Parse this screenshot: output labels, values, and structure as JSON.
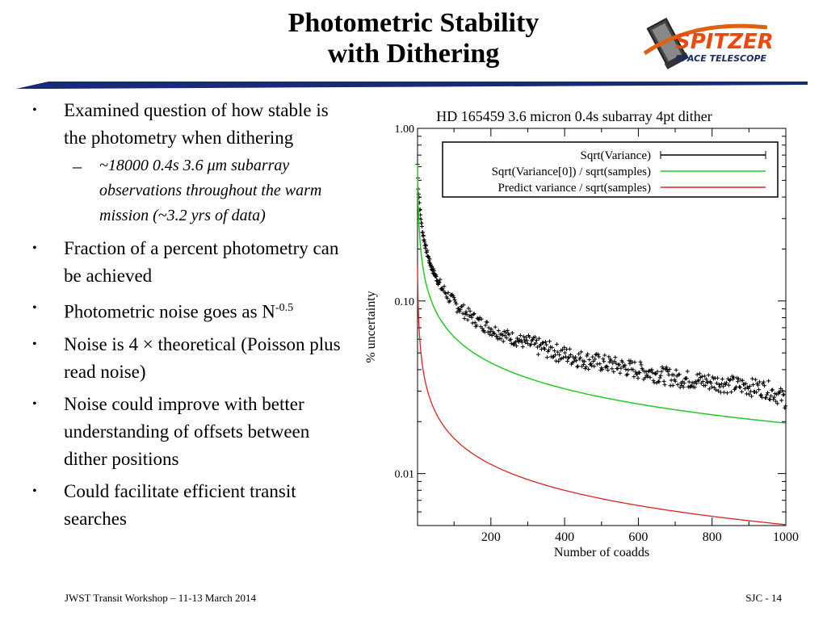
{
  "slide": {
    "title_line1": "Photometric Stability",
    "title_line2": "with Dithering",
    "logo_text_main": "SPITZER",
    "logo_text_sub": "SPACE TELESCOPE",
    "bullets": [
      {
        "text": "Examined question of how stable is the photometry when dithering"
      },
      {
        "text": "Fraction of a percent photometry can be achieved"
      },
      {
        "text_before": "Photometric noise goes as N",
        "superscript": "-0.5"
      },
      {
        "text": "Noise is 4 ×  theoretical (Poisson plus read noise)"
      },
      {
        "text": "Noise could improve with better understanding of offsets between dither positions"
      },
      {
        "text": "Could facilitate efficient transit searches"
      }
    ],
    "sub_bullet": "~18000 0.4s 3.6 μm subarray observations throughout the warm mission (~3.2 yrs of data)",
    "bullet_symbol": "•",
    "dash_symbol": "–",
    "footer_left": "JWST Transit Workshop – 11-13 March 2014",
    "footer_right": "SJC - 14"
  },
  "chart_data": {
    "type": "line",
    "title": "HD 165459 3.6 micron 0.4s subarray 4pt dither",
    "xlabel": "Number of coadds",
    "ylabel": "% uncertainty",
    "xlim": [
      1,
      1000
    ],
    "ylim": [
      0.005,
      1.0
    ],
    "yscale": "log",
    "xticks": [
      200,
      400,
      600,
      800,
      1000
    ],
    "xtick_labels": [
      "200",
      "400",
      "600",
      "800",
      "1000"
    ],
    "yticks": [
      0.01,
      0.1,
      1.0
    ],
    "ytick_labels": [
      "0.01",
      "0.10",
      "1.00"
    ],
    "legend_position": "top-right",
    "series": [
      {
        "name": "Sqrt(Variance)",
        "style": "points",
        "color": "#000000",
        "x": [
          1,
          5,
          10,
          20,
          30,
          40,
          50,
          60,
          80,
          100,
          125,
          150,
          175,
          200,
          250,
          300,
          350,
          400,
          450,
          500,
          550,
          600,
          650,
          700,
          750,
          800,
          850,
          900,
          950,
          1000
        ],
        "y": [
          0.62,
          0.4,
          0.3,
          0.22,
          0.18,
          0.155,
          0.14,
          0.125,
          0.11,
          0.098,
          0.088,
          0.08,
          0.074,
          0.069,
          0.062,
          0.057,
          0.053,
          0.049,
          0.046,
          0.044,
          0.042,
          0.04,
          0.038,
          0.036,
          0.035,
          0.034,
          0.033,
          0.032,
          0.031,
          0.027
        ]
      },
      {
        "name": "Sqrt(Variance[0]) / sqrt(samples)",
        "style": "line",
        "color": "#22cc22",
        "y_at_x1": 0.62
      },
      {
        "name": "Predict variance / sqrt(samples)",
        "style": "line",
        "color": "#dd2222",
        "y_at_x1": 0.16
      }
    ]
  }
}
